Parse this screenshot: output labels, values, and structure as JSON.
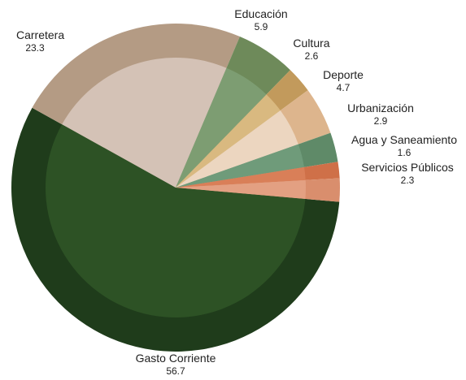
{
  "chart_data": {
    "type": "pie",
    "title": "",
    "slices": [
      {
        "label": "Gasto Corriente",
        "value": 56.7,
        "value_text": "56.7",
        "color": "#1f3c1b",
        "inner": "#2d5225"
      },
      {
        "label": "Carretera",
        "value": 23.3,
        "value_text": "23.3",
        "color": "#b49b84",
        "inner": "#d4c2b6"
      },
      {
        "label": "Educación",
        "value": 5.9,
        "value_text": "5.9",
        "color": "#6e8a5a",
        "inner": "#7d9d72"
      },
      {
        "label": "Cultura",
        "value": 2.6,
        "value_text": "2.6",
        "color": "#c29a5c",
        "inner": "#d9b980"
      },
      {
        "label": "Deporte",
        "value": 4.7,
        "value_text": "4.7",
        "color": "#ddb58d",
        "inner": "#ecd6c0"
      },
      {
        "label": "Urbanización",
        "value": 2.9,
        "value_text": "2.9",
        "color": "#5f8a68",
        "inner": "#6f9b7a"
      },
      {
        "label": "Agua y Saneamiento",
        "value": 1.6,
        "value_text": "1.6",
        "color": "#cf7048",
        "inner": "#d97f58"
      },
      {
        "label": "Servicios Públicos",
        "value": 2.3,
        "value_text": "2.3",
        "color": "#d98e6d",
        "inner": "#e3a082"
      }
    ],
    "legend": "none",
    "labels": "outside"
  }
}
